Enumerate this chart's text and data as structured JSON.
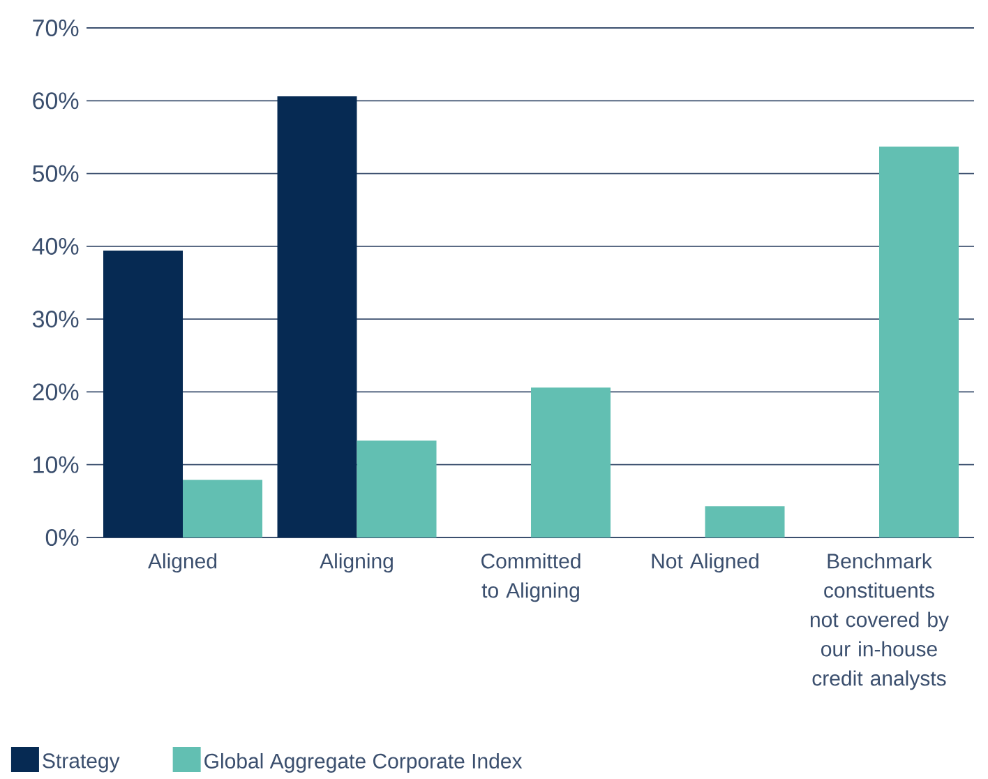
{
  "chart_data": {
    "type": "bar",
    "categories": [
      "Aligned",
      "Aligning",
      "Committed to Aligning",
      "Not Aligned",
      "Benchmark constituents not covered by our in-house credit analysts"
    ],
    "series": [
      {
        "name": "Strategy",
        "color": "#062a53",
        "values": [
          39.4,
          60.6,
          null,
          null,
          null
        ]
      },
      {
        "name": "Global Aggregate Corporate Index",
        "color": "#62bfb2",
        "values": [
          7.9,
          13.3,
          20.6,
          4.3,
          53.7
        ]
      }
    ],
    "ylim": [
      0,
      70
    ],
    "yticks": [
      {
        "value": 0,
        "label": "0%"
      },
      {
        "value": 10,
        "label": "10%"
      },
      {
        "value": 20,
        "label": "20%"
      },
      {
        "value": 30,
        "label": "30%"
      },
      {
        "value": 40,
        "label": "40%"
      },
      {
        "value": 50,
        "label": "50%"
      },
      {
        "value": 60,
        "label": "60%"
      },
      {
        "value": 70,
        "label": "70%"
      }
    ],
    "grid": "y",
    "legend": "bottom"
  }
}
